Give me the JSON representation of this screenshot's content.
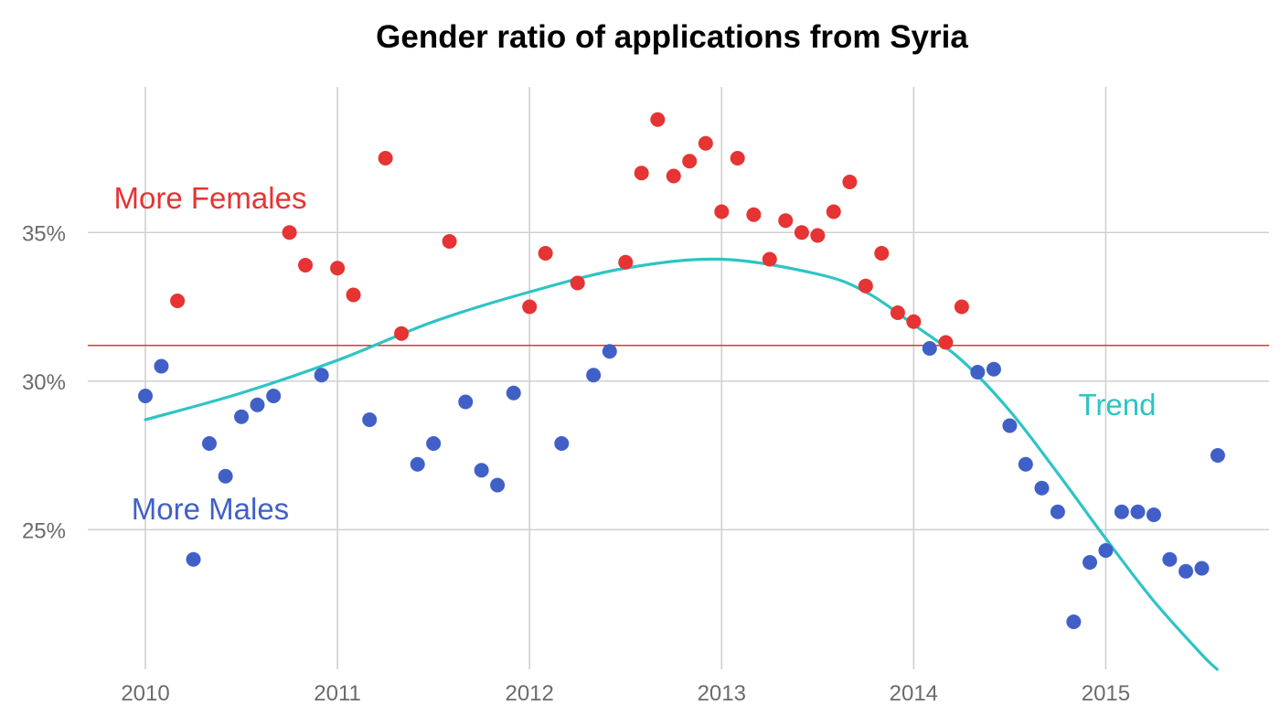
{
  "chart_data": {
    "type": "scatter",
    "title": "Gender ratio of applications from Syria",
    "xlabel": "",
    "ylabel": "",
    "x_ticks": [
      2010,
      2011,
      2012,
      2013,
      2014,
      2015
    ],
    "x_tick_labels": [
      "2010",
      "2011",
      "2012",
      "2013",
      "2014",
      "2015"
    ],
    "y_ticks": [
      25,
      30,
      35
    ],
    "y_tick_labels": [
      "25%",
      "30%",
      "35%"
    ],
    "xlim": [
      2009.7,
      2015.85
    ],
    "ylim": [
      20.3,
      39.9
    ],
    "grid": true,
    "reference_line": {
      "value": 31.2,
      "color": "#e63333"
    },
    "colors": {
      "above": "#e63333",
      "below": "#4060c8",
      "trend": "#2ec4c4"
    },
    "annotations": {
      "above": "More Females",
      "below": "More Males",
      "trend": "Trend"
    },
    "series": [
      {
        "points": [
          [
            2010.0,
            29.5
          ],
          [
            2010.083,
            30.5
          ],
          [
            2010.167,
            32.7
          ],
          [
            2010.25,
            24.0
          ],
          [
            2010.333,
            27.9
          ],
          [
            2010.417,
            26.8
          ],
          [
            2010.5,
            28.8
          ],
          [
            2010.583,
            29.2
          ],
          [
            2010.667,
            29.5
          ],
          [
            2010.75,
            35.0
          ],
          [
            2010.833,
            33.9
          ],
          [
            2010.917,
            30.2
          ],
          [
            2011.0,
            33.8
          ],
          [
            2011.083,
            32.9
          ],
          [
            2011.167,
            28.7
          ],
          [
            2011.25,
            37.5
          ],
          [
            2011.333,
            31.6
          ],
          [
            2011.417,
            27.2
          ],
          [
            2011.5,
            27.9
          ],
          [
            2011.583,
            34.7
          ],
          [
            2011.667,
            29.3
          ],
          [
            2011.75,
            27.0
          ],
          [
            2011.833,
            26.5
          ],
          [
            2011.917,
            29.6
          ],
          [
            2012.0,
            32.5
          ],
          [
            2012.083,
            34.3
          ],
          [
            2012.167,
            27.9
          ],
          [
            2012.25,
            33.3
          ],
          [
            2012.333,
            30.2
          ],
          [
            2012.417,
            31.0
          ],
          [
            2012.5,
            34.0
          ],
          [
            2012.583,
            37.0
          ],
          [
            2012.667,
            38.8
          ],
          [
            2012.75,
            36.9
          ],
          [
            2012.833,
            37.4
          ],
          [
            2012.917,
            38.0
          ],
          [
            2013.0,
            35.7
          ],
          [
            2013.083,
            37.5
          ],
          [
            2013.167,
            35.6
          ],
          [
            2013.25,
            34.1
          ],
          [
            2013.333,
            35.4
          ],
          [
            2013.417,
            35.0
          ],
          [
            2013.5,
            34.9
          ],
          [
            2013.583,
            35.7
          ],
          [
            2013.667,
            36.7
          ],
          [
            2013.75,
            33.2
          ],
          [
            2013.833,
            34.3
          ],
          [
            2013.917,
            32.3
          ],
          [
            2014.0,
            32.0
          ],
          [
            2014.083,
            31.1
          ],
          [
            2014.167,
            31.3
          ],
          [
            2014.25,
            32.5
          ],
          [
            2014.333,
            30.3
          ],
          [
            2014.417,
            30.4
          ],
          [
            2014.5,
            28.5
          ],
          [
            2014.583,
            27.2
          ],
          [
            2014.667,
            26.4
          ],
          [
            2014.75,
            25.6
          ],
          [
            2014.833,
            21.9
          ],
          [
            2014.917,
            23.9
          ],
          [
            2015.0,
            24.3
          ],
          [
            2015.083,
            25.6
          ],
          [
            2015.167,
            25.6
          ],
          [
            2015.25,
            25.5
          ],
          [
            2015.333,
            24.0
          ],
          [
            2015.417,
            23.6
          ],
          [
            2015.5,
            23.7
          ],
          [
            2015.583,
            27.5
          ]
        ]
      },
      {
        "type": "line",
        "points": [
          [
            2010.0,
            28.7
          ],
          [
            2010.5,
            29.6
          ],
          [
            2011.0,
            30.7
          ],
          [
            2011.5,
            32.0
          ],
          [
            2012.0,
            33.0
          ],
          [
            2012.5,
            33.8
          ],
          [
            2013.0,
            34.1
          ],
          [
            2013.5,
            33.6
          ],
          [
            2013.75,
            33.0
          ],
          [
            2014.0,
            31.9
          ],
          [
            2014.25,
            30.7
          ],
          [
            2014.5,
            29.0
          ],
          [
            2014.75,
            26.9
          ],
          [
            2015.0,
            24.7
          ],
          [
            2015.25,
            22.6
          ],
          [
            2015.5,
            20.8
          ],
          [
            2015.58,
            20.3
          ]
        ]
      }
    ]
  }
}
